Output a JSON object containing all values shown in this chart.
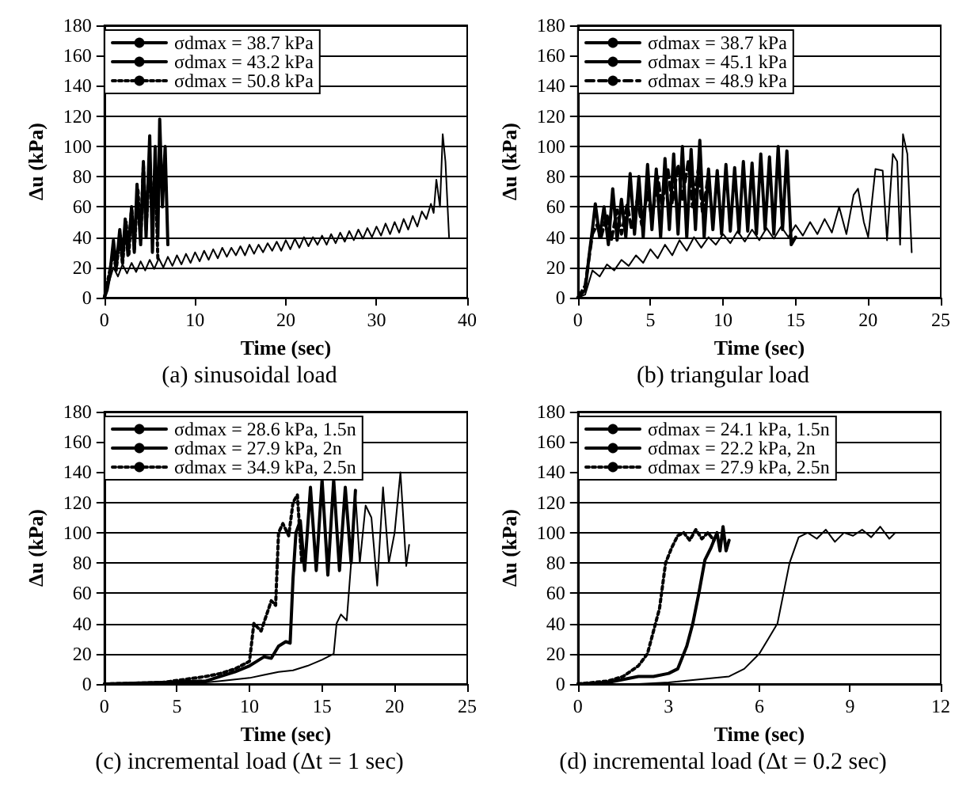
{
  "chart_data": [
    {
      "type": "line",
      "title": "(a) sinusoidal load",
      "xlabel": "Time (sec)",
      "ylabel": "Δu (kPa)",
      "xlim": [
        0,
        40
      ],
      "xticks": [
        0,
        10,
        20,
        30,
        40
      ],
      "ylim": [
        0,
        180
      ],
      "yticks": [
        0,
        20,
        40,
        60,
        80,
        100,
        120,
        140,
        160,
        180
      ],
      "grid": "y",
      "legend": "top left",
      "marker": "none",
      "series": [
        {
          "name": "σdmax = 38.7 kPa",
          "color": "#000000",
          "line_style": "solid",
          "x": [
            0,
            0.5,
            1,
            1.5,
            2,
            2.5,
            3,
            3.5,
            4,
            4.5,
            5,
            5.5,
            6,
            6.5,
            7,
            7.5,
            8,
            8.5,
            9,
            9.5,
            10,
            10.5,
            11,
            11.5,
            12,
            12.5,
            13,
            13.5,
            14,
            14.5,
            15,
            15.5,
            16,
            16.5,
            17,
            17.5,
            18,
            18.5,
            19,
            19.5,
            20,
            20.5,
            21,
            21.5,
            22,
            22.5,
            23,
            23.5,
            24,
            24.5,
            25,
            25.5,
            26,
            26.5,
            27,
            27.5,
            28,
            28.5,
            29,
            29.5,
            30,
            30.5,
            31,
            31.5,
            32,
            32.5,
            33,
            33.5,
            34,
            34.5,
            35,
            35.5,
            36,
            36.3,
            36.6,
            37,
            37.3,
            37.6,
            37.8,
            38
          ],
          "values": [
            0,
            10,
            20,
            14,
            22,
            16,
            23,
            17,
            24,
            18,
            25,
            19,
            26,
            20,
            27,
            21,
            28,
            22,
            29,
            23,
            30,
            24,
            31,
            25,
            32,
            26,
            33,
            27,
            33,
            28,
            34,
            28,
            35,
            29,
            35,
            30,
            36,
            31,
            37,
            31,
            38,
            32,
            39,
            33,
            40,
            34,
            40,
            35,
            41,
            35,
            42,
            36,
            43,
            37,
            44,
            38,
            45,
            39,
            46,
            40,
            47,
            41,
            49,
            42,
            50,
            43,
            52,
            45,
            54,
            47,
            57,
            52,
            62,
            56,
            78,
            60,
            108,
            90,
            65,
            40
          ]
        },
        {
          "name": "σdmax = 43.2 kPa",
          "color": "#000000",
          "line_style": "solid",
          "x": [
            0,
            0.3,
            0.6,
            1,
            1.3,
            1.7,
            2,
            2.3,
            2.6,
            3,
            3.3,
            3.6,
            4,
            4.3,
            4.6,
            5,
            5.3,
            5.6,
            5.9,
            6.1,
            6.4,
            6.7,
            7
          ],
          "values": [
            0,
            5,
            15,
            38,
            20,
            45,
            25,
            52,
            28,
            60,
            30,
            75,
            35,
            90,
            40,
            107,
            30,
            100,
            40,
            118,
            60,
            100,
            35
          ]
        },
        {
          "name": "σdmax = 50.8 kPa",
          "color": "#000000",
          "line_style": "dotted",
          "x": [
            0,
            0.5,
            1,
            1.3,
            1.7,
            2,
            2.4,
            2.7,
            3,
            3.3,
            3.7,
            4,
            4.3,
            4.6,
            5,
            5.3,
            5.6,
            5.9
          ],
          "values": [
            0,
            15,
            30,
            18,
            40,
            22,
            50,
            28,
            60,
            32,
            72,
            38,
            88,
            45,
            90,
            55,
            85,
            25
          ]
        }
      ]
    },
    {
      "type": "line",
      "title": "(b) triangular load",
      "xlabel": "Time (sec)",
      "ylabel": "Δu (kPa)",
      "xlim": [
        0,
        25
      ],
      "xticks": [
        0,
        5,
        10,
        15,
        20,
        25
      ],
      "ylim": [
        0,
        180
      ],
      "yticks": [
        0,
        20,
        40,
        60,
        80,
        100,
        120,
        140,
        160,
        180
      ],
      "grid": "y",
      "legend": "top left",
      "marker": "none",
      "series": [
        {
          "name": "σdmax = 38.7 kPa",
          "color": "#000000",
          "line_style": "solid",
          "x": [
            0,
            0.5,
            1,
            1.5,
            2,
            2.5,
            3,
            3.5,
            4,
            4.5,
            5,
            5.5,
            6,
            6.5,
            7,
            7.5,
            8,
            8.5,
            9,
            9.5,
            10,
            10.5,
            11,
            11.5,
            12,
            12.5,
            13,
            13.5,
            14,
            14.5,
            15,
            15.5,
            16,
            16.5,
            17,
            17.5,
            18,
            18.5,
            19,
            19.3,
            19.7,
            20,
            20.5,
            21,
            21.3,
            21.7,
            22,
            22.2,
            22.4,
            22.7,
            23
          ],
          "values": [
            0,
            2,
            18,
            14,
            22,
            18,
            25,
            21,
            28,
            23,
            32,
            26,
            35,
            28,
            38,
            31,
            40,
            33,
            40,
            35,
            42,
            36,
            44,
            37,
            45,
            38,
            46,
            39,
            47,
            40,
            48,
            41,
            50,
            42,
            52,
            43,
            60,
            42,
            68,
            72,
            50,
            40,
            85,
            84,
            38,
            95,
            90,
            35,
            108,
            95,
            30
          ]
        },
        {
          "name": "σdmax = 45.1 kPa",
          "color": "#000000",
          "line_style": "solid",
          "x": [
            0,
            0.5,
            0.8,
            1,
            1.2,
            1.5,
            1.8,
            2.1,
            2.4,
            2.7,
            3,
            3.3,
            3.6,
            3.9,
            4.2,
            4.5,
            4.8,
            5.1,
            5.4,
            5.7,
            6,
            6.3,
            6.6,
            6.9,
            7.2,
            7.5,
            7.8,
            8.1,
            8.4,
            8.7,
            9,
            9.3,
            9.6,
            9.9,
            10.2,
            10.5,
            10.8,
            11.1,
            11.4,
            11.7,
            12,
            12.3,
            12.6,
            12.9,
            13.2,
            13.5,
            13.8,
            14.1,
            14.4,
            14.7,
            15
          ],
          "values": [
            0,
            5,
            30,
            45,
            62,
            40,
            60,
            35,
            72,
            38,
            65,
            40,
            82,
            42,
            80,
            40,
            88,
            45,
            85,
            40,
            92,
            45,
            95,
            42,
            100,
            40,
            98,
            45,
            104,
            40,
            85,
            45,
            84,
            42,
            88,
            44,
            86,
            43,
            90,
            44,
            89,
            42,
            95,
            45,
            93,
            42,
            100,
            45,
            97,
            35,
            40
          ]
        },
        {
          "name": "σdmax = 48.9 kPa",
          "color": "#000000",
          "line_style": "dashed",
          "x": [
            0,
            0.5,
            1,
            1.3,
            1.6,
            2,
            2.3,
            2.7,
            3,
            3.4,
            3.7,
            4.1,
            4.4,
            4.8,
            5.1,
            5.5,
            5.8,
            6.2,
            6.5,
            6.9,
            7.2,
            7.6,
            7.9,
            8.3,
            8.6,
            9
          ],
          "values": [
            0,
            8,
            42,
            48,
            40,
            55,
            38,
            58,
            42,
            62,
            45,
            65,
            48,
            70,
            52,
            80,
            60,
            85,
            62,
            88,
            65,
            90,
            60,
            85,
            55,
            82
          ]
        }
      ]
    },
    {
      "type": "line",
      "title": "(c) incremental load (Δt = 1 sec)",
      "xlabel": "Time (sec)",
      "ylabel": "Δu (kPa)",
      "xlim": [
        0,
        25
      ],
      "xticks": [
        0,
        5,
        10,
        15,
        20,
        25
      ],
      "ylim": [
        0,
        180
      ],
      "yticks": [
        0,
        20,
        40,
        60,
        80,
        100,
        120,
        140,
        160,
        180
      ],
      "grid": "y",
      "legend": "top left",
      "marker": "none",
      "series": [
        {
          "name": "σdmax = 28.6 kPa, 1.5n",
          "color": "#000000",
          "line_style": "solid",
          "x": [
            0,
            4,
            7,
            8,
            9,
            10,
            11,
            12,
            13,
            14,
            15,
            15.8,
            16,
            16.3,
            16.7,
            17,
            17.3,
            17.6,
            18,
            18.4,
            18.8,
            19.2,
            19.6,
            20,
            20.4,
            20.8,
            21
          ],
          "values": [
            0,
            1,
            1,
            2,
            3,
            4,
            6,
            8,
            9,
            12,
            16,
            20,
            40,
            46,
            42,
            80,
            125,
            80,
            118,
            110,
            65,
            130,
            80,
            100,
            140,
            78,
            92
          ]
        },
        {
          "name": "σdmax = 27.9 kPa, 2n",
          "color": "#000000",
          "line_style": "solid",
          "x": [
            0,
            4,
            7,
            8,
            9,
            10,
            10.5,
            11,
            11.5,
            12,
            12.5,
            12.8,
            13,
            13.2,
            13.5,
            13.8,
            14.2,
            14.6,
            15,
            15.4,
            15.8,
            16.2,
            16.6,
            17,
            17.3
          ],
          "values": [
            0,
            1,
            2,
            5,
            8,
            12,
            15,
            18,
            17,
            25,
            28,
            27,
            70,
            100,
            108,
            75,
            130,
            75,
            135,
            72,
            135,
            75,
            130,
            80,
            128
          ]
        },
        {
          "name": "σdmax = 34.9 kPa, 2.5n",
          "color": "#000000",
          "line_style": "dotted",
          "x": [
            0,
            4,
            7,
            8,
            9,
            10,
            10.3,
            10.8,
            11.5,
            11.8,
            12,
            12.3,
            12.7,
            13,
            13.3,
            13.6
          ],
          "values": [
            0,
            1,
            5,
            7,
            10,
            15,
            40,
            35,
            55,
            52,
            100,
            106,
            98,
            120,
            125,
            80
          ]
        }
      ]
    },
    {
      "type": "line",
      "title": "(d) incremental load (Δt = 0.2 sec)",
      "xlabel": "Time (sec)",
      "ylabel": "Δu (kPa)",
      "xlim": [
        0,
        12
      ],
      "xticks": [
        0,
        3,
        6,
        9,
        12
      ],
      "ylim": [
        0,
        180
      ],
      "yticks": [
        0,
        20,
        40,
        60,
        80,
        100,
        120,
        140,
        160,
        180
      ],
      "grid": "y",
      "legend": "top left",
      "marker": "none",
      "series": [
        {
          "name": "σdmax = 24.1 kPa, 1.5n",
          "color": "#000000",
          "line_style": "solid",
          "x": [
            0,
            2,
            3,
            4,
            5,
            5.5,
            6,
            6.3,
            6.6,
            6.8,
            7,
            7.3,
            7.6,
            7.9,
            8.2,
            8.5,
            8.8,
            9.1,
            9.4,
            9.7,
            10,
            10.3,
            10.5
          ],
          "values": [
            0,
            0,
            1,
            3,
            5,
            10,
            20,
            30,
            40,
            60,
            80,
            97,
            100,
            96,
            102,
            94,
            100,
            98,
            102,
            97,
            104,
            96,
            100
          ]
        },
        {
          "name": "σdmax = 22.2 kPa, 2n",
          "color": "#000000",
          "line_style": "solid",
          "x": [
            0,
            1,
            1.5,
            2,
            2.5,
            3,
            3.3,
            3.6,
            3.8,
            4,
            4.2,
            4.4,
            4.6,
            4.7,
            4.8,
            4.9,
            5
          ],
          "values": [
            0,
            1,
            3,
            5,
            5,
            7,
            10,
            25,
            40,
            60,
            82,
            90,
            100,
            88,
            104,
            88,
            95
          ]
        },
        {
          "name": "σdmax = 27.9 kPa, 2.5n",
          "color": "#000000",
          "line_style": "dotted",
          "x": [
            0,
            1,
            1.5,
            2,
            2.3,
            2.5,
            2.7,
            2.9,
            3.1,
            3.3,
            3.5,
            3.7,
            3.9,
            4.1,
            4.3,
            4.5
          ],
          "values": [
            0,
            2,
            5,
            12,
            20,
            35,
            50,
            80,
            90,
            98,
            100,
            95,
            102,
            96,
            100,
            95
          ]
        }
      ]
    }
  ]
}
